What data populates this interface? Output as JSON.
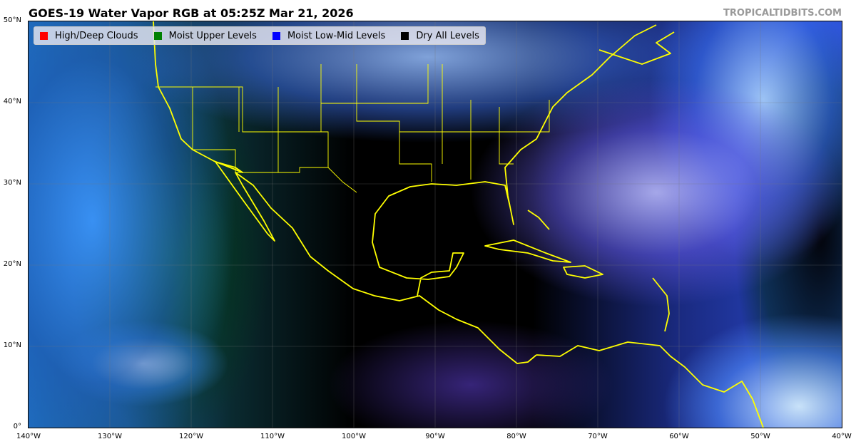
{
  "title": "GOES-19 Water Vapor RGB at 05:25Z Mar 21, 2026",
  "credit": "TROPICALTIDBITS.COM",
  "legend": [
    {
      "label": "High/Deep Clouds",
      "color": "#ff0000"
    },
    {
      "label": "Moist Upper Levels",
      "color": "#008000"
    },
    {
      "label": "Moist Low-Mid Levels",
      "color": "#0000ff"
    },
    {
      "label": "Dry All Levels",
      "color": "#000000"
    }
  ],
  "axes": {
    "x_ticks": [
      "140°W",
      "130°W",
      "120°W",
      "110°W",
      "100°W",
      "90°W",
      "80°W",
      "70°W",
      "60°W",
      "50°W",
      "40°W"
    ],
    "y_ticks": [
      "0°",
      "10°N",
      "20°N",
      "30°N",
      "40°N",
      "50°N"
    ]
  },
  "colors": {
    "coastline": "#ffff00",
    "credit": "#9a9a9a"
  }
}
